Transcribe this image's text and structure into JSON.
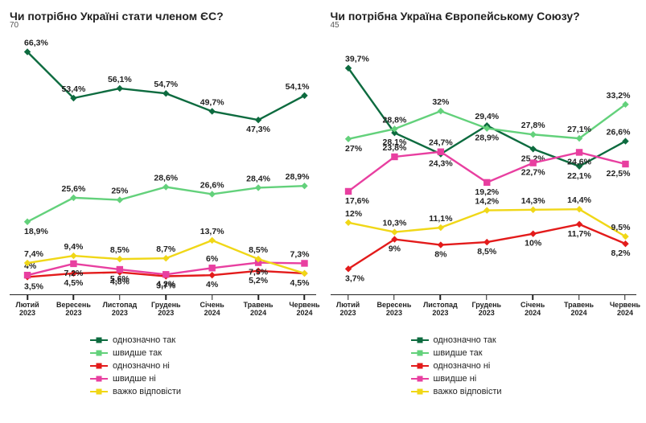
{
  "chart_left": {
    "type": "line",
    "title": "Чи потрібно Україні стати членом ЄС?",
    "y_max_label": "70",
    "y_max": 70,
    "background_color": "#ffffff",
    "axis_color": "#222222",
    "label_fontsize": 10,
    "point_label_fontsize": 10,
    "title_fontsize": 14,
    "categories": [
      "Лютий 2023",
      "Вересень 2023",
      "Листопад 2023",
      "Грудень 2023",
      "Січень 2024",
      "Травень 2024",
      "Червень 2024"
    ],
    "series": [
      {
        "name": "однозначно так",
        "color": "#0d6b3f",
        "marker": "diamond",
        "values": [
          66.3,
          53.4,
          56.1,
          54.7,
          49.7,
          47.3,
          54.1
        ],
        "labels": [
          "66,3%",
          "53,4%",
          "56,1%",
          "54,7%",
          "49,7%",
          "47,3%",
          "54,1%"
        ]
      },
      {
        "name": "швидше так",
        "color": "#63d17b",
        "marker": "diamond",
        "values": [
          18.9,
          25.6,
          25.0,
          28.6,
          26.6,
          28.4,
          28.9
        ],
        "labels": [
          "18,9%",
          "25,6%",
          "25%",
          "28,6%",
          "26,6%",
          "28,4%",
          "28,9%"
        ]
      },
      {
        "name": "однозначно ні",
        "color": "#e31b1b",
        "marker": "diamond",
        "values": [
          3.5,
          4.5,
          4.8,
          3.7,
          4.0,
          5.2,
          4.5
        ],
        "labels": [
          "3,5%",
          "4,5%",
          "4,8%",
          "3,7%",
          "4%",
          "5,2%",
          "4,5%"
        ]
      },
      {
        "name": "швидше ні",
        "color": "#e83fa0",
        "marker": "square",
        "values": [
          4.0,
          7.2,
          5.6,
          4.2,
          6.0,
          7.5,
          7.3
        ],
        "labels": [
          "4%",
          "7,2%",
          "5,6%",
          "4,2%",
          "6%",
          "7,5%",
          "7,3%"
        ]
      },
      {
        "name": "важко відповісти",
        "color": "#f0d717",
        "marker": "diamond",
        "values": [
          7.4,
          9.4,
          8.5,
          8.7,
          13.7,
          8.5,
          4.5
        ],
        "labels": [
          "7,4%",
          "9,4%",
          "8,5%",
          "8,7%",
          "13,7%",
          "8,5%",
          ""
        ]
      }
    ],
    "label_pos": [
      [
        "a",
        "a",
        "a",
        "a",
        "a",
        "b",
        "a"
      ],
      [
        "b",
        "a",
        "a",
        "a",
        "a",
        "a",
        "a"
      ],
      [
        "b",
        "b",
        "b",
        "b",
        "b",
        "b",
        "b"
      ],
      [
        "a",
        "b",
        "b",
        "b",
        "a",
        "b",
        "a"
      ],
      [
        "a",
        "a",
        "a",
        "a",
        "a",
        "a",
        "b"
      ]
    ]
  },
  "chart_right": {
    "type": "line",
    "title": "Чи потрібна Україна Європейському Союзу?",
    "y_max_label": "45",
    "y_max": 45,
    "background_color": "#ffffff",
    "axis_color": "#222222",
    "label_fontsize": 10,
    "point_label_fontsize": 10,
    "title_fontsize": 14,
    "categories": [
      "Лютий 2023",
      "Вересень 2023",
      "Листопад 2023",
      "Грудень 2023",
      "Січень 2024",
      "Травень 2024",
      "Червень 2024"
    ],
    "series": [
      {
        "name": "однозначно так",
        "color": "#0d6b3f",
        "marker": "diamond",
        "values": [
          39.7,
          28.1,
          24.3,
          29.4,
          25.2,
          22.1,
          26.6
        ],
        "labels": [
          "39,7%",
          "28,1%",
          "24,3%",
          "29,4%",
          "25,2%",
          "22,1%",
          "26,6%"
        ]
      },
      {
        "name": "швидше так",
        "color": "#63d17b",
        "marker": "diamond",
        "values": [
          27.0,
          28.8,
          32.0,
          28.9,
          27.8,
          27.1,
          33.2
        ],
        "labels": [
          "27%",
          "28,8%",
          "32%",
          "28,9%",
          "27,8%",
          "27,1%",
          "33,2%"
        ]
      },
      {
        "name": "однозначно ні",
        "color": "#e31b1b",
        "marker": "diamond",
        "values": [
          3.7,
          9.0,
          8.0,
          8.5,
          10.0,
          11.7,
          8.2
        ],
        "labels": [
          "3,7%",
          "9%",
          "8%",
          "8,5%",
          "10%",
          "11,7%",
          "8,2%"
        ]
      },
      {
        "name": "швидше ні",
        "color": "#e83fa0",
        "marker": "square",
        "values": [
          17.6,
          23.8,
          24.7,
          19.2,
          22.7,
          24.6,
          22.5
        ],
        "labels": [
          "17,6%",
          "23,8%",
          "24,7%",
          "19,2%",
          "22,7%",
          "24,6%",
          "22,5%"
        ]
      },
      {
        "name": "важко відповісти",
        "color": "#f0d717",
        "marker": "diamond",
        "values": [
          12.0,
          10.3,
          11.1,
          14.2,
          14.3,
          14.4,
          9.5
        ],
        "labels": [
          "12%",
          "10,3%",
          "11,1%",
          "14,2%",
          "14,3%",
          "14,4%",
          "9,5%"
        ]
      }
    ],
    "label_pos": [
      [
        "a",
        "b",
        "b",
        "a",
        "b",
        "b",
        "a"
      ],
      [
        "b",
        "a",
        "a",
        "b",
        "a",
        "a",
        "a"
      ],
      [
        "b",
        "b",
        "b",
        "b",
        "b",
        "b",
        "b"
      ],
      [
        "b",
        "a",
        "a",
        "b",
        "b",
        "b",
        "b"
      ],
      [
        "a",
        "a",
        "a",
        "a",
        "a",
        "a",
        "a"
      ]
    ]
  },
  "legend": [
    {
      "label": "однозначно так",
      "color": "#0d6b3f"
    },
    {
      "label": "швидше так",
      "color": "#63d17b"
    },
    {
      "label": "однозначно ні",
      "color": "#e31b1b"
    },
    {
      "label": "швидше ні",
      "color": "#e83fa0"
    },
    {
      "label": "важко відповісти",
      "color": "#f0d717"
    }
  ]
}
